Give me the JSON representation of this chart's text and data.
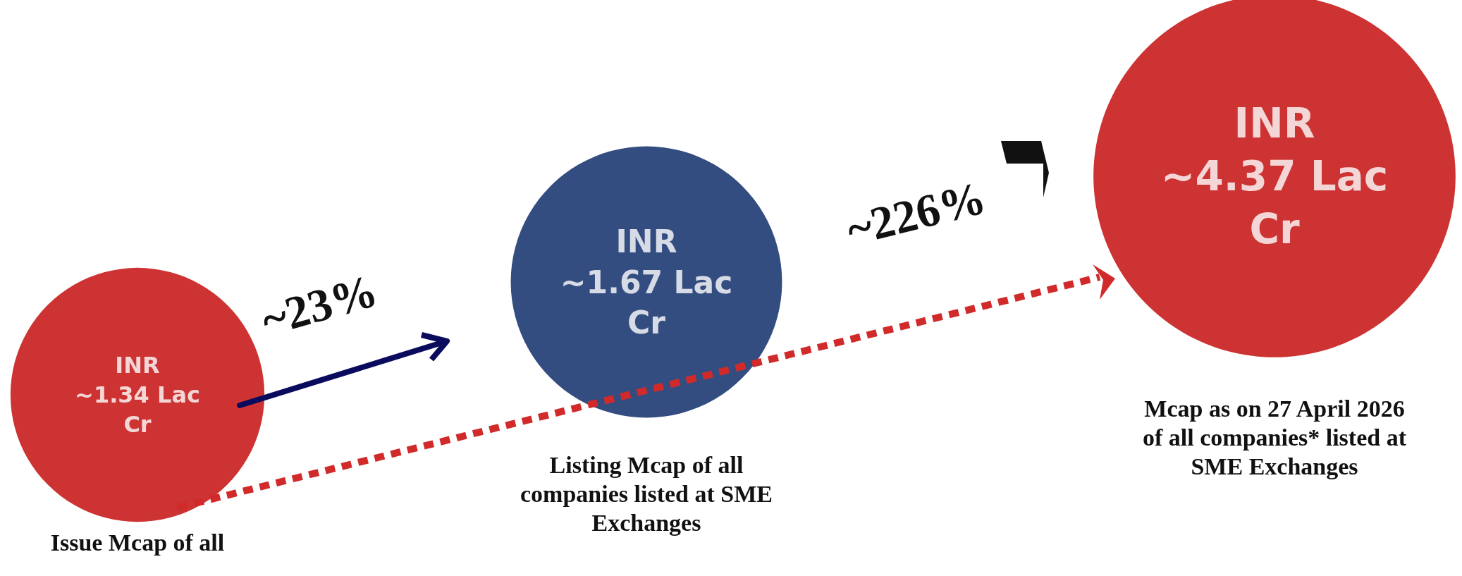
{
  "chart_data": {
    "type": "other",
    "categories": [
      "Issue Mcap of all",
      "Listing Mcap of all companies listed at SME Exchanges",
      "Mcap as on 27 April 2026  of all companies* listed at SME Exchanges"
    ],
    "values": [
      1.34,
      1.67,
      4.37
    ],
    "value_labels": [
      "INR\n~1.34 Lac\nCr",
      "INR\n~1.67 Lac\nCr",
      "INR\n~4.37 Lac\nCr"
    ],
    "colors": [
      "#c00000",
      "#002060",
      "#c00000"
    ],
    "annotations": [
      "~23%",
      "~226%"
    ]
  }
}
